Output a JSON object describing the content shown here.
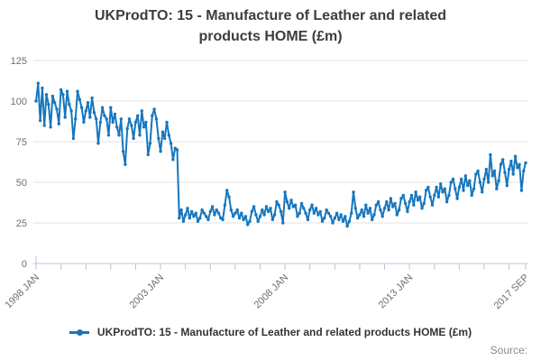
{
  "title": "UKProdTO: 15 - Manufacture of Leather and related products HOME (£m)",
  "legend": {
    "label": "UKProdTO: 15 - Manufacture of Leather and related products HOME (£m)"
  },
  "source_label": "Source:",
  "colors": {
    "line": "#1776bd",
    "grid": "#e3e3e3",
    "axis": "#b9c7da",
    "tick_label": "#6f6f6f",
    "title_text": "#3d3d3d",
    "legend_text": "#333333",
    "source_text": "#8b8b8b"
  },
  "chart_data": {
    "type": "line",
    "title": "UKProdTO: 15 - Manufacture of Leather and related products HOME (£m)",
    "xlabel": "",
    "ylabel": "",
    "ylim": [
      0,
      125
    ],
    "yticks": [
      0,
      25,
      50,
      75,
      100,
      125
    ],
    "grid": "horizontal",
    "legend_position": "bottom",
    "frequency": "monthly",
    "x_start": "1998 JAN",
    "x_end": "2017 SEP",
    "x_tick_labels": [
      {
        "label": "1998 JAN",
        "month": 0
      },
      {
        "label": "2003 JAN",
        "month": 60
      },
      {
        "label": "2008 JAN",
        "month": 120
      },
      {
        "label": "2013 JAN",
        "month": 180
      },
      {
        "label": "2017 SEP",
        "month": 236
      }
    ],
    "series": [
      {
        "name": "UKProdTO: 15 - Manufacture of Leather and related products HOME (£m)",
        "values": [
          100,
          111,
          88,
          108,
          85,
          104,
          98,
          84,
          103,
          99,
          95,
          86,
          107,
          104,
          90,
          106,
          98,
          94,
          77,
          89,
          106,
          101,
          96,
          87,
          94,
          99,
          90,
          102,
          93,
          89,
          74,
          87,
          96,
          91,
          89,
          79,
          96,
          87,
          92,
          84,
          79,
          89,
          69,
          61,
          83,
          89,
          85,
          77,
          87,
          91,
          79,
          94,
          84,
          87,
          67,
          74,
          91,
          95,
          89,
          77,
          69,
          81,
          77,
          87,
          79,
          74,
          64,
          71,
          70,
          28,
          33,
          26,
          30,
          34,
          28,
          32,
          29,
          31,
          26,
          28,
          33,
          31,
          29,
          27,
          32,
          35,
          30,
          33,
          31,
          28,
          27,
          36,
          45,
          41,
          33,
          29,
          31,
          33,
          28,
          31,
          27,
          29,
          24,
          26,
          32,
          35,
          30,
          26,
          29,
          33,
          30,
          35,
          32,
          34,
          27,
          30,
          38,
          36,
          32,
          25,
          44,
          38,
          34,
          39,
          35,
          36,
          29,
          31,
          37,
          34,
          31,
          27,
          33,
          36,
          31,
          34,
          30,
          32,
          26,
          28,
          33,
          31,
          29,
          25,
          28,
          31,
          27,
          30,
          26,
          29,
          23,
          26,
          31,
          44,
          34,
          28,
          30,
          33,
          29,
          36,
          31,
          34,
          27,
          30,
          36,
          38,
          33,
          29,
          34,
          38,
          33,
          40,
          35,
          37,
          30,
          33,
          40,
          42,
          37,
          32,
          38,
          42,
          36,
          44,
          39,
          41,
          34,
          37,
          45,
          47,
          41,
          36,
          42,
          47,
          41,
          49,
          44,
          46,
          38,
          42,
          50,
          52,
          46,
          40,
          47,
          52,
          45,
          54,
          48,
          51,
          42,
          46,
          55,
          57,
          50,
          44,
          52,
          58,
          50,
          67,
          54,
          57,
          46,
          51,
          61,
          64,
          56,
          48,
          58,
          63,
          55,
          66,
          59,
          61,
          45,
          57,
          62
        ]
      }
    ]
  }
}
